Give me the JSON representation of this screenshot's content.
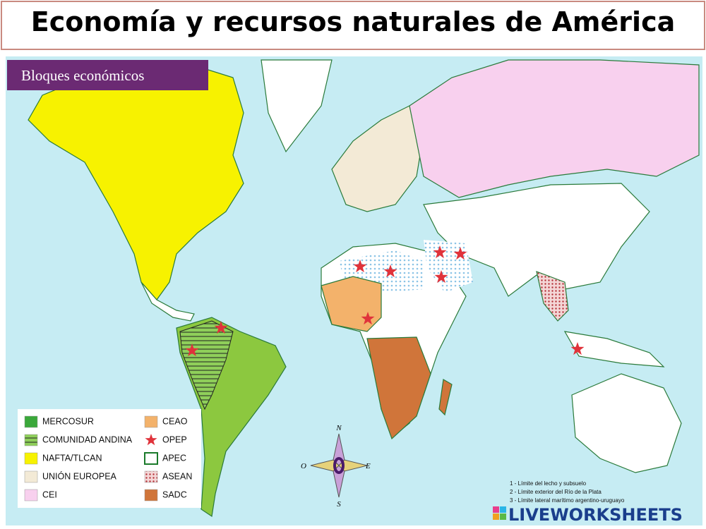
{
  "title": "Economía y recursos naturales de América",
  "map_header": "Bloques económicos",
  "legend": [
    {
      "label": "MERCOSUR"
    },
    {
      "label": "COMUNIDAD ANDINA"
    },
    {
      "label": "NAFTA/TLCAN"
    },
    {
      "label": "UNIÓN EUROPEA"
    },
    {
      "label": "CEI"
    },
    {
      "label": "CEAO"
    },
    {
      "label": "OPEP"
    },
    {
      "label": "APEC"
    },
    {
      "label": "ASEAN"
    },
    {
      "label": "SADC"
    }
  ],
  "compass": {
    "n": "N",
    "s": "S",
    "e": "E",
    "o": "O"
  },
  "notes": [
    "1 - Límite del lecho y subsuelo",
    "2 - Límite exterior del Río de la Plata",
    "3 - Límite lateral marítimo argentino-uruguayo"
  ],
  "watermark": "LIVEWORKSHEETS"
}
